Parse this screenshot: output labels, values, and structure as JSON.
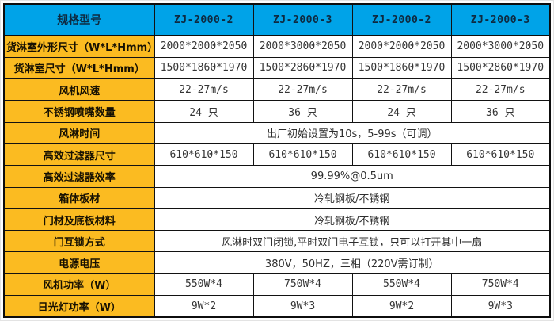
{
  "table": {
    "header": {
      "label": "规格型号",
      "models": [
        "ZJ-2000-2",
        "ZJ-2000-3",
        "ZJ-2000-2",
        "ZJ-2000-3"
      ]
    },
    "rows": [
      {
        "label": "货淋室外形尺寸（W*L*Hmm）",
        "type": "cells",
        "values": [
          "2000*2000*2050",
          "2000*3000*2050",
          "2000*2000*2050",
          "2000*3000*2050"
        ]
      },
      {
        "label": "货淋室尺寸（W*L*Hmm）",
        "type": "cells",
        "values": [
          "1500*1860*1970",
          "1500*2860*1970",
          "1500*1860*1970",
          "1500*2860*1970"
        ]
      },
      {
        "label": "风机风速",
        "type": "cells",
        "values": [
          "22-27m/s",
          "22-27m/s",
          "22-27m/s",
          "22-27m/s"
        ]
      },
      {
        "label": "不锈钢喷嘴数量",
        "type": "cells",
        "values": [
          "24 只",
          "36 只",
          "24 只",
          "36 只"
        ]
      },
      {
        "label": "风淋时间",
        "type": "span",
        "value": "出厂初始设置为10s，5-99s（可调）"
      },
      {
        "label": "高效过滤器尺寸",
        "type": "cells",
        "values": [
          "610*610*150",
          "610*610*150",
          "610*610*150",
          "610*610*150"
        ]
      },
      {
        "label": "高效过滤器效率",
        "type": "span",
        "value": "99.99%@0.5um"
      },
      {
        "label": "箱体板材",
        "type": "span",
        "value": "冷轧钢板/不锈钢"
      },
      {
        "label": "门材及底板材料",
        "type": "span",
        "value": "冷轧钢板/不锈钢"
      },
      {
        "label": "门互锁方式",
        "type": "span",
        "value": "风淋时双门闭锁,平时双门电子互锁，只可以打开其中一扇"
      },
      {
        "label": "电源电压",
        "type": "span",
        "value": "380V，50HZ，三相（220V需订制）"
      },
      {
        "label": "风机功率（W）",
        "type": "cells",
        "values": [
          "550W*4",
          "750W*4",
          "550W*4",
          "750W*4"
        ]
      },
      {
        "label": "日光灯功率（W）",
        "type": "cells",
        "values": [
          "9W*2",
          "9W*3",
          "9W*2",
          "9W*3"
        ]
      }
    ],
    "colors": {
      "header_bg": "#00A3E8",
      "label_bg": "#FBBB21",
      "border": "#121212",
      "cell_bg": "#FFFFFF"
    }
  }
}
